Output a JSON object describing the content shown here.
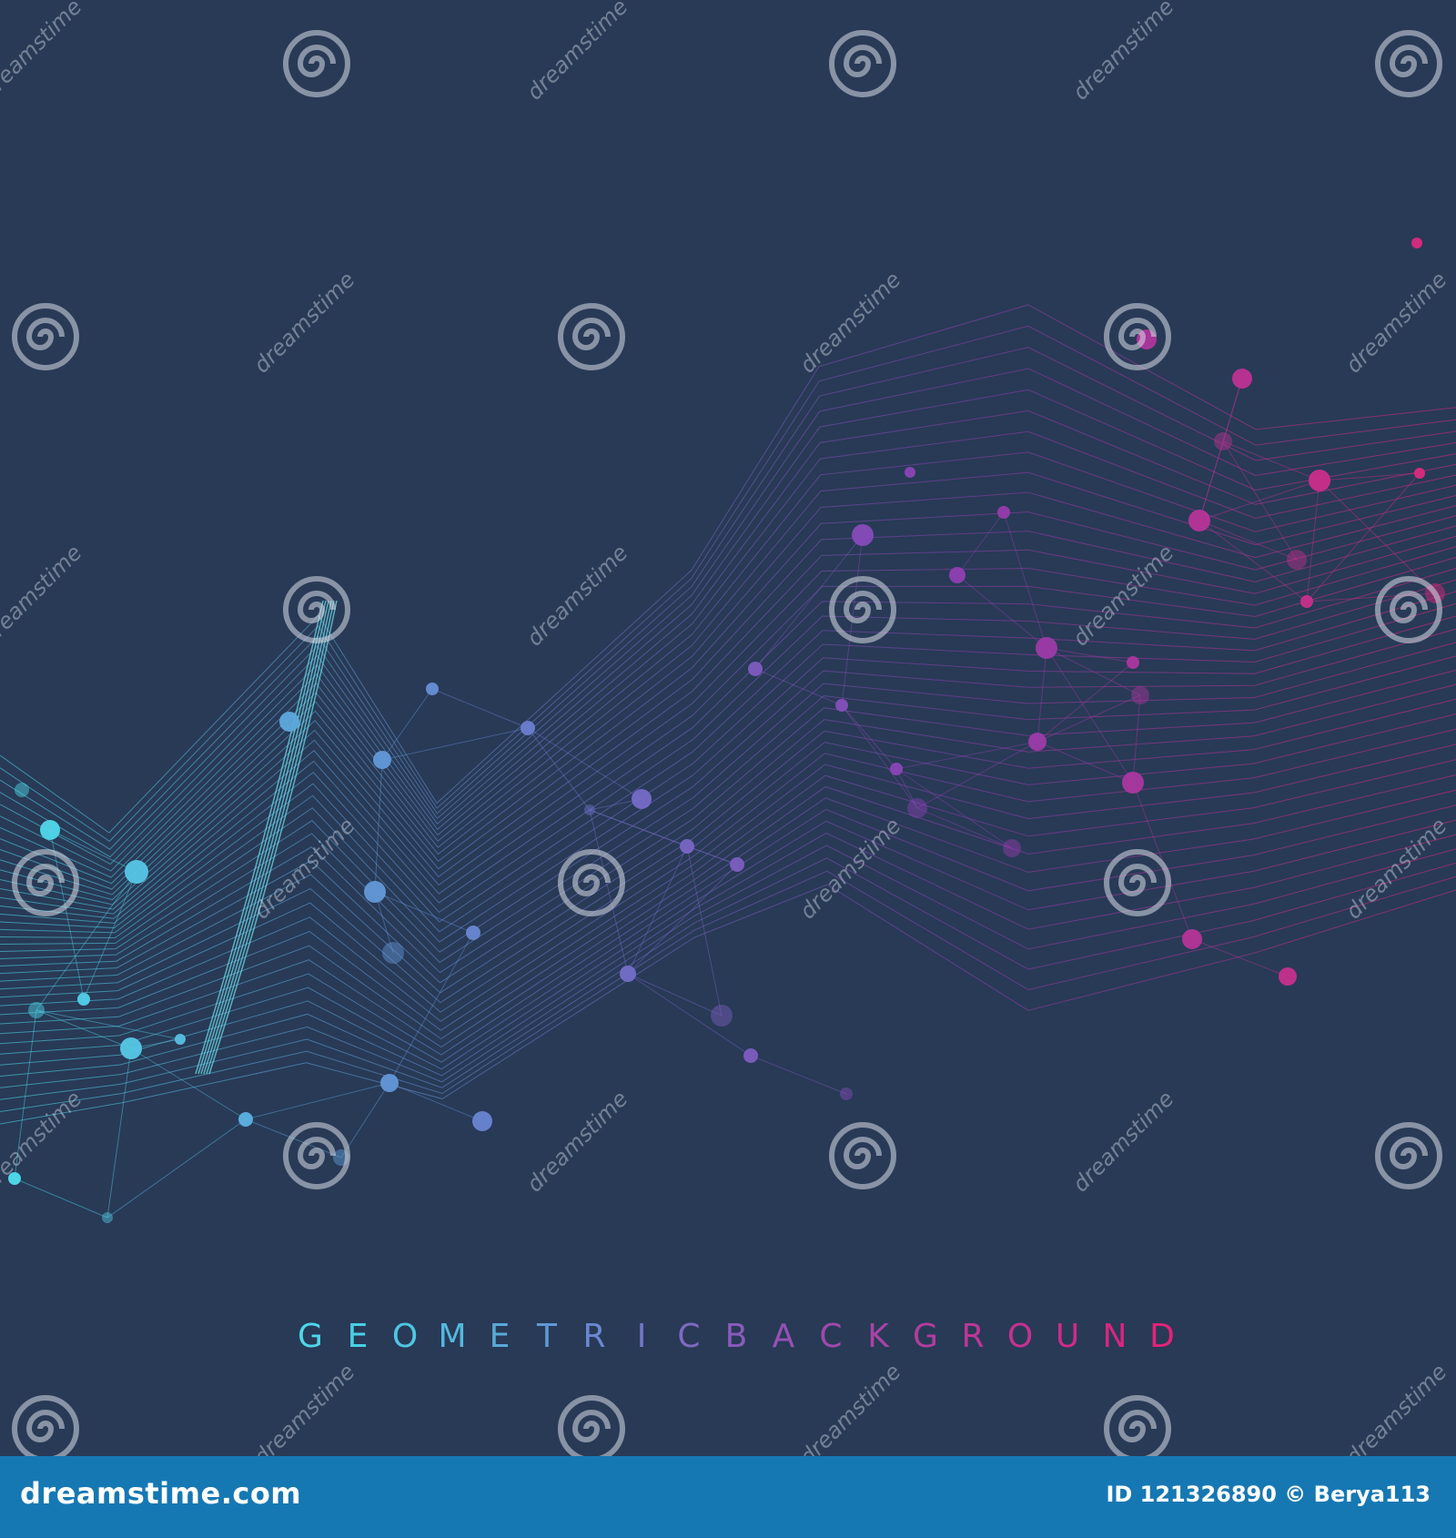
{
  "artwork": {
    "title_letters": [
      "G",
      "E",
      "O",
      "M",
      "E",
      "T",
      "R",
      "I",
      "C",
      "B",
      "A",
      "C",
      "K",
      "G",
      "R",
      "O",
      "U",
      "N",
      "D"
    ],
    "title_colors": [
      "#4ed6ea",
      "#4ad0e6",
      "#4fc6e2",
      "#54b8de",
      "#5aa9da",
      "#6098d4",
      "#6a88cf",
      "#7478c8",
      "#7f69c2",
      "#8a5abb",
      "#9650b6",
      "#a049ae",
      "#aa42a6",
      "#b33c9e",
      "#bd3696",
      "#c63090",
      "#cf2b88",
      "#d82680",
      "#e0247a"
    ],
    "palette": {
      "background": "#283a56",
      "cyan": "#4ee0ee",
      "blue": "#6a80d0",
      "purple": "#8d3fb3",
      "magenta": "#e0287c"
    }
  },
  "watermark": {
    "text": "dreamstime",
    "icon": "spiral-icon"
  },
  "footer": {
    "brand": "dreamstime.com",
    "id_credit": "ID 121326890 © Berya113",
    "background": "#1678b3"
  }
}
